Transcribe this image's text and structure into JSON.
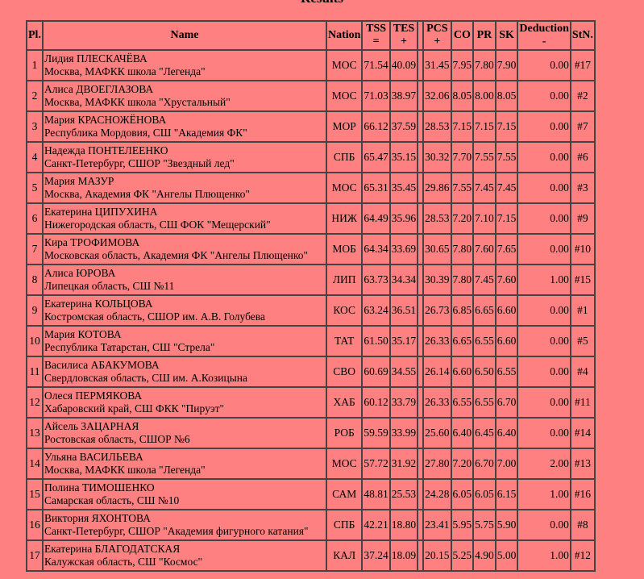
{
  "title": "Results",
  "headers": {
    "pl": "Pl.",
    "name": "Name",
    "nation": "Nation",
    "tss": "TSS",
    "tss_op": "=",
    "tes": "TES",
    "tes_op": "+",
    "pcs": "PCS",
    "pcs_op": "+",
    "co": "CO",
    "pr": "PR",
    "sk": "SK",
    "ded": "Deduction",
    "ded_op": "-",
    "stn": "StN."
  },
  "rows": [
    {
      "pl": "1",
      "name": "Лидия ПЛЕСКАЧЁВА",
      "club": "Москва, МАФКК школа \"Легенда\"",
      "nation": "МОС",
      "tss": "71.54",
      "tes": "40.09",
      "pcs": "31.45",
      "co": "7.95",
      "pr": "7.80",
      "sk": "7.90",
      "ded": "0.00",
      "stn": "#17"
    },
    {
      "pl": "2",
      "name": "Алиса ДВОЕГЛАЗОВА",
      "club": "Москва, МАФКК школа \"Хрустальный\"",
      "nation": "МОС",
      "tss": "71.03",
      "tes": "38.97",
      "pcs": "32.06",
      "co": "8.05",
      "pr": "8.00",
      "sk": "8.05",
      "ded": "0.00",
      "stn": "#2"
    },
    {
      "pl": "3",
      "name": "Мария КРАСНОЖЁНОВА",
      "club": "Республика Мордовия, СШ \"Академия ФК\"",
      "nation": "МОР",
      "tss": "66.12",
      "tes": "37.59",
      "pcs": "28.53",
      "co": "7.15",
      "pr": "7.15",
      "sk": "7.15",
      "ded": "0.00",
      "stn": "#7"
    },
    {
      "pl": "4",
      "name": "Надежда ПОНТЕЛЕЕНКО",
      "club": "Санкт-Петербург, СШОР \"Звездный лед\"",
      "nation": "СПБ",
      "tss": "65.47",
      "tes": "35.15",
      "pcs": "30.32",
      "co": "7.70",
      "pr": "7.55",
      "sk": "7.55",
      "ded": "0.00",
      "stn": "#6"
    },
    {
      "pl": "5",
      "name": "Мария МАЗУР",
      "club": "Москва, Академия ФК \"Ангелы Плющенко\"",
      "nation": "МОС",
      "tss": "65.31",
      "tes": "35.45",
      "pcs": "29.86",
      "co": "7.55",
      "pr": "7.45",
      "sk": "7.45",
      "ded": "0.00",
      "stn": "#3"
    },
    {
      "pl": "6",
      "name": "Екатерина ЦИПУХИНА",
      "club": "Нижегородская область, СШ ФОК \"Мещерский\"",
      "nation": "НИЖ",
      "tss": "64.49",
      "tes": "35.96",
      "pcs": "28.53",
      "co": "7.20",
      "pr": "7.10",
      "sk": "7.15",
      "ded": "0.00",
      "stn": "#9"
    },
    {
      "pl": "7",
      "name": "Кира ТРОФИМОВА",
      "club": "Московская область, Академия ФК \"Ангелы Плющенко\"",
      "nation": "МОБ",
      "tss": "64.34",
      "tes": "33.69",
      "pcs": "30.65",
      "co": "7.80",
      "pr": "7.60",
      "sk": "7.65",
      "ded": "0.00",
      "stn": "#10"
    },
    {
      "pl": "8",
      "name": "Алиса ЮРОВА",
      "club": "Липецкая область, СШ №11",
      "nation": "ЛИП",
      "tss": "63.73",
      "tes": "34.34",
      "pcs": "30.39",
      "co": "7.80",
      "pr": "7.45",
      "sk": "7.60",
      "ded": "1.00",
      "stn": "#15"
    },
    {
      "pl": "9",
      "name": "Екатерина КОЛЬЦОВА",
      "club": "Костромская область, СШОР им. А.В. Голубева",
      "nation": "КОС",
      "tss": "63.24",
      "tes": "36.51",
      "pcs": "26.73",
      "co": "6.85",
      "pr": "6.65",
      "sk": "6.60",
      "ded": "0.00",
      "stn": "#1"
    },
    {
      "pl": "10",
      "name": "Мария КОТОВА",
      "club": "Республика Татарстан, СШ \"Стрела\"",
      "nation": "ТАТ",
      "tss": "61.50",
      "tes": "35.17",
      "pcs": "26.33",
      "co": "6.65",
      "pr": "6.55",
      "sk": "6.60",
      "ded": "0.00",
      "stn": "#5"
    },
    {
      "pl": "11",
      "name": "Василиса АБАКУМОВА",
      "club": "Свердловская область, СШ им. А.Козицына",
      "nation": "СВО",
      "tss": "60.69",
      "tes": "34.55",
      "pcs": "26.14",
      "co": "6.60",
      "pr": "6.50",
      "sk": "6.55",
      "ded": "0.00",
      "stn": "#4"
    },
    {
      "pl": "12",
      "name": "Олеся ПЕРМЯКОВА",
      "club": "Хабаровский край, СШ ФКК \"Пируэт\"",
      "nation": "ХАБ",
      "tss": "60.12",
      "tes": "33.79",
      "pcs": "26.33",
      "co": "6.55",
      "pr": "6.55",
      "sk": "6.70",
      "ded": "0.00",
      "stn": "#11"
    },
    {
      "pl": "13",
      "name": "Айсель ЗАЦАРНАЯ",
      "club": "Ростовская область, СШОР №6",
      "nation": "РОБ",
      "tss": "59.59",
      "tes": "33.99",
      "pcs": "25.60",
      "co": "6.40",
      "pr": "6.45",
      "sk": "6.40",
      "ded": "0.00",
      "stn": "#14"
    },
    {
      "pl": "14",
      "name": "Ульяна ВАСИЛЬЕВА",
      "club": "Москва, МАФКК школа \"Легенда\"",
      "nation": "МОС",
      "tss": "57.72",
      "tes": "31.92",
      "pcs": "27.80",
      "co": "7.20",
      "pr": "6.70",
      "sk": "7.00",
      "ded": "2.00",
      "stn": "#13"
    },
    {
      "pl": "15",
      "name": "Полина ТИМОШЕНКО",
      "club": "Самарская область, СШ №10",
      "nation": "САМ",
      "tss": "48.81",
      "tes": "25.53",
      "pcs": "24.28",
      "co": "6.05",
      "pr": "6.05",
      "sk": "6.15",
      "ded": "1.00",
      "stn": "#16"
    },
    {
      "pl": "16",
      "name": "Виктория ЯХОНТОВА",
      "club": "Санкт-Петербург, СШОР \"Академия фигурного катания\"",
      "nation": "СПБ",
      "tss": "42.21",
      "tes": "18.80",
      "pcs": "23.41",
      "co": "5.95",
      "pr": "5.75",
      "sk": "5.90",
      "ded": "0.00",
      "stn": "#8"
    },
    {
      "pl": "17",
      "name": "Екатерина БЛАГОДАТСКАЯ",
      "club": "Калужская область, СШ \"Космос\"",
      "nation": "КАЛ",
      "tss": "37.24",
      "tes": "18.09",
      "pcs": "20.15",
      "co": "5.25",
      "pr": "4.90",
      "sk": "5.00",
      "ded": "1.00",
      "stn": "#12"
    }
  ]
}
